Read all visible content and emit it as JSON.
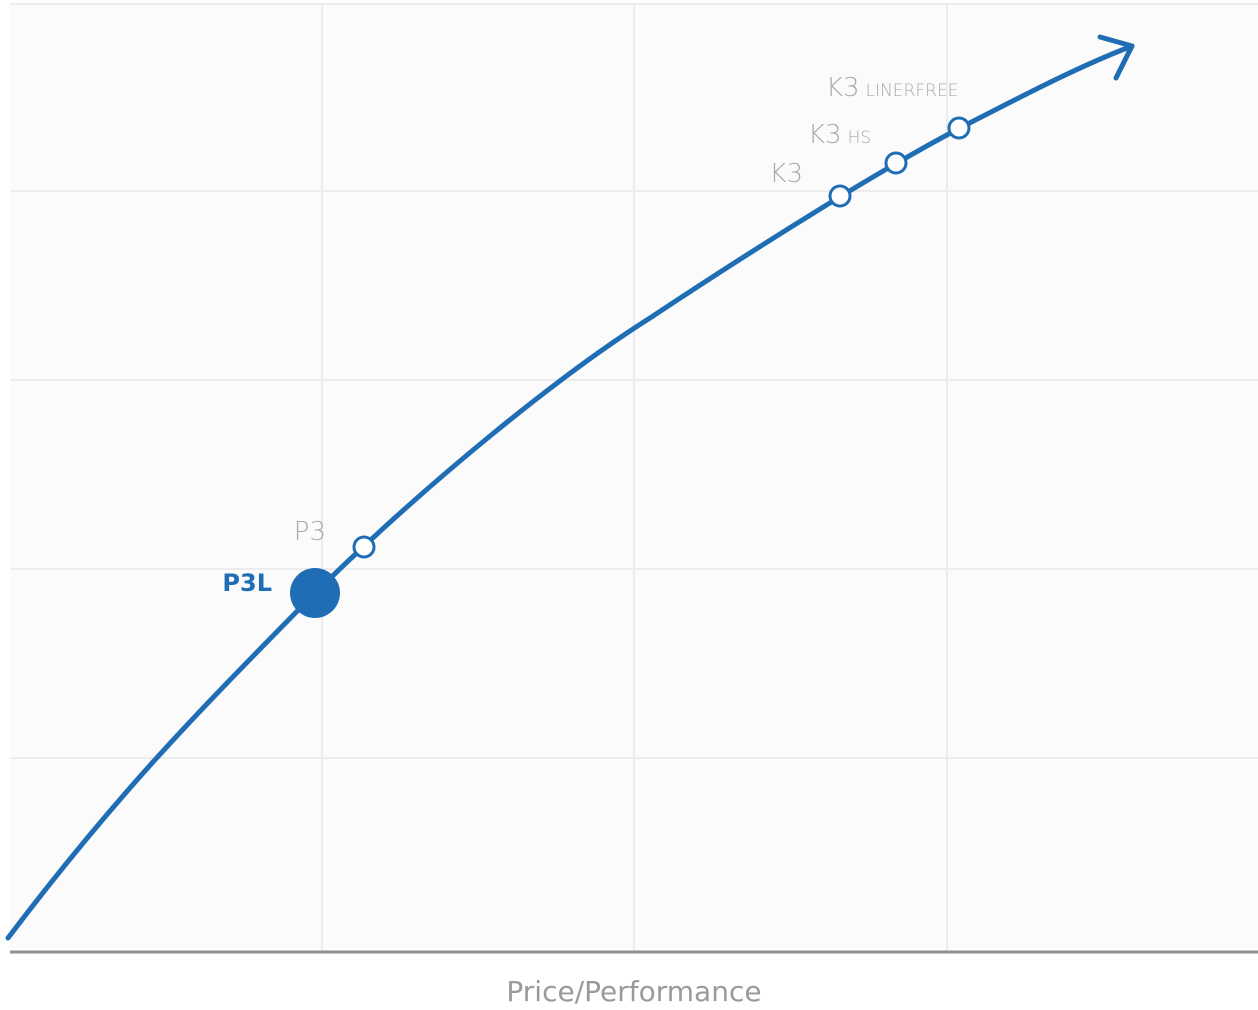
{
  "chart_data": {
    "type": "line",
    "xlabel": "Price/Performance",
    "ylabel": "",
    "grid": true,
    "colors": {
      "curve": "#1f6db4",
      "grid": "#ececec",
      "axis": "#8f8f8f",
      "muted_label": "#a9a9a9"
    },
    "points": [
      {
        "name": "P3L",
        "highlight": true
      },
      {
        "name": "P3",
        "highlight": false
      },
      {
        "name": "K3",
        "highlight": false
      },
      {
        "name": "K3",
        "sub": "HS",
        "highlight": false
      },
      {
        "name": "K3",
        "sub": "LINERFREE",
        "highlight": false
      }
    ]
  }
}
